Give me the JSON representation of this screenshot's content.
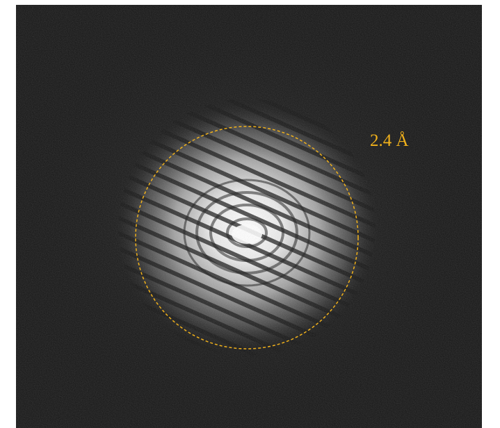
{
  "figure": {
    "resolution_label": "2.4 Å",
    "ring_color": "#f2b21b",
    "background_color": "#141414",
    "spot_color": "#ffffff"
  }
}
